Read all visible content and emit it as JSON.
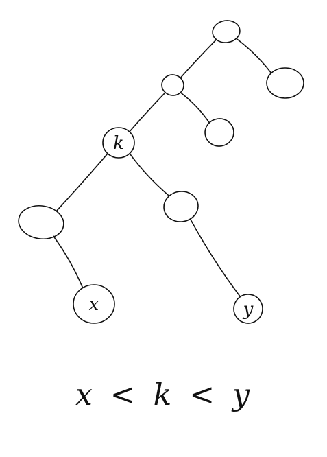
{
  "tree": {
    "nodes": [
      {
        "id": "root",
        "label": ""
      },
      {
        "id": "root-right",
        "label": ""
      },
      {
        "id": "left-child",
        "label": ""
      },
      {
        "id": "left-child-right",
        "label": ""
      },
      {
        "id": "node-k",
        "label": "k"
      },
      {
        "id": "k-left",
        "label": ""
      },
      {
        "id": "k-right",
        "label": ""
      },
      {
        "id": "node-x",
        "label": "x"
      },
      {
        "id": "node-y",
        "label": "y"
      }
    ],
    "edges": [
      [
        "root",
        "root-right"
      ],
      [
        "root",
        "left-child"
      ],
      [
        "left-child",
        "left-child-right"
      ],
      [
        "left-child",
        "node-k"
      ],
      [
        "node-k",
        "k-left"
      ],
      [
        "node-k",
        "k-right"
      ],
      [
        "k-left",
        "node-x"
      ],
      [
        "k-right",
        "node-y"
      ]
    ]
  },
  "caption": "x < k < y"
}
